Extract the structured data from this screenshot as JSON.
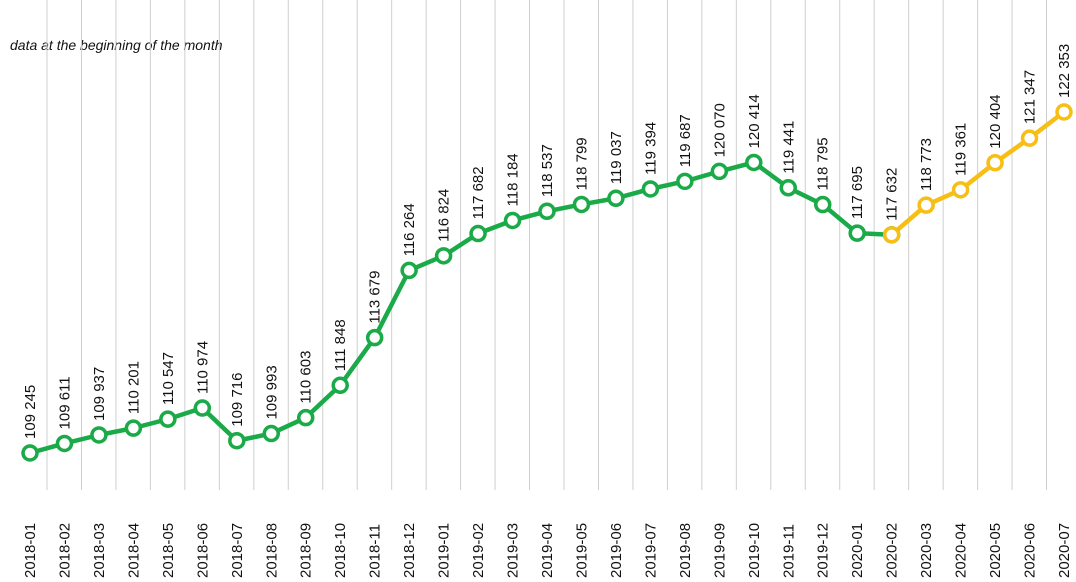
{
  "chart_data": {
    "type": "line",
    "subtitle": "data at the beginning of the month",
    "categories": [
      "2018-01",
      "2018-02",
      "2018-03",
      "2018-04",
      "2018-05",
      "2018-06",
      "2018-07",
      "2018-08",
      "2018-09",
      "2018-10",
      "2018-11",
      "2018-12",
      "2019-01",
      "2019-02",
      "2019-03",
      "2019-04",
      "2019-05",
      "2019-06",
      "2019-07",
      "2019-08",
      "2019-09",
      "2019-10",
      "2019-11",
      "2019-12",
      "2020-01",
      "2020-02",
      "2020-03",
      "2020-04",
      "2020-05",
      "2020-06",
      "2020-07"
    ],
    "series": [
      {
        "color": "#1aaa48",
        "values": [
          109245,
          109611,
          109937,
          110201,
          110547,
          110974,
          109716,
          109993,
          110603,
          111848,
          113679,
          116264,
          116824,
          117682,
          118184,
          118537,
          118799,
          119037,
          119394,
          119687,
          120070,
          120414,
          119441,
          118795,
          117695,
          117632,
          null,
          null,
          null,
          null,
          null
        ],
        "value_labels": [
          "109 245",
          "109 611",
          "109 937",
          "110 201",
          "110 547",
          "110 974",
          "109 716",
          "109 993",
          "110 603",
          "111 848",
          "113 679",
          "116 264",
          "116 824",
          "117 682",
          "118 184",
          "118 537",
          "118 799",
          "119 037",
          "119 394",
          "119 687",
          "120 070",
          "120 414",
          "119 441",
          "118 795",
          "117 695",
          "117 632",
          null,
          null,
          null,
          null,
          null
        ]
      },
      {
        "color": "#f7be16",
        "values": [
          null,
          null,
          null,
          null,
          null,
          null,
          null,
          null,
          null,
          null,
          null,
          null,
          null,
          null,
          null,
          null,
          null,
          null,
          null,
          null,
          null,
          null,
          null,
          null,
          null,
          117632,
          118773,
          119361,
          120404,
          121347,
          122353
        ],
        "value_labels": [
          null,
          null,
          null,
          null,
          null,
          null,
          null,
          null,
          null,
          null,
          null,
          null,
          null,
          null,
          null,
          null,
          null,
          null,
          null,
          null,
          null,
          null,
          null,
          null,
          null,
          null,
          "118 773",
          "119 361",
          "120 404",
          "121 347",
          "122 353"
        ]
      }
    ],
    "grid": true
  }
}
